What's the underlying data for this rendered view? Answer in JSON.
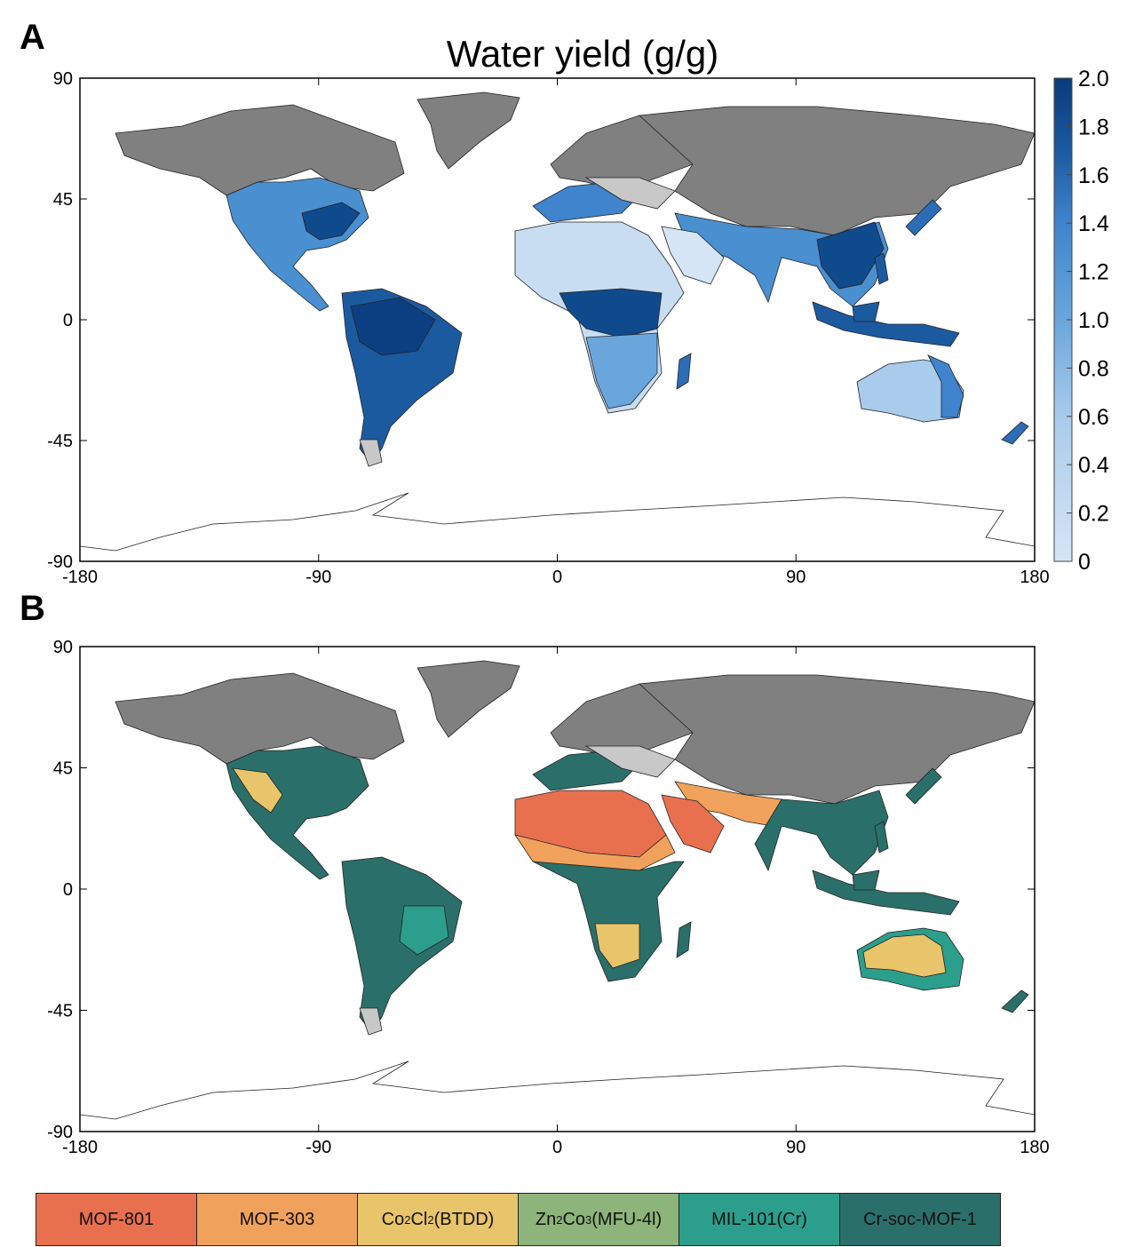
{
  "panel_a": {
    "letter": "A",
    "title": "Water yield (g/g)",
    "y_ticks": [
      "90",
      "45",
      "0",
      "-45",
      "-90"
    ],
    "x_ticks": [
      "-180",
      "-90",
      "0",
      "90",
      "180"
    ],
    "colorbar": {
      "ticks": [
        "2.0",
        "1.8",
        "1.6",
        "1.4",
        "1.2",
        "1.0",
        "0.8",
        "0.6",
        "0.4",
        "0.2",
        "0"
      ],
      "range": [
        0,
        2.0
      ],
      "color_low": "#d6e5f5",
      "color_high": "#0a3a7a"
    }
  },
  "panel_b": {
    "letter": "B",
    "y_ticks": [
      "90",
      "45",
      "0",
      "-45",
      "-90"
    ],
    "x_ticks": [
      "-180",
      "-90",
      "0",
      "90",
      "180"
    ]
  },
  "legend": [
    {
      "name": "MOF-801",
      "color": "#e8704f"
    },
    {
      "name": "MOF-303",
      "color": "#f0a25c"
    },
    {
      "name": "Co2Cl2(BTDD)",
      "color": "#e8c46a",
      "base": "Co",
      "sub1": "2",
      "mid": "Cl",
      "sub2": "2",
      "tail": "(BTDD)"
    },
    {
      "name": "Zn2Co3(MFU-4l)",
      "color": "#8db47a",
      "base": "Zn",
      "sub1": "2",
      "mid": "Co",
      "sub2": "3",
      "tail": "(MFU-4l)"
    },
    {
      "name": "MIL-101(Cr)",
      "color": "#2c9e8c"
    },
    {
      "name": "Cr-soc-MOF-1",
      "color": "#2b6f6a"
    }
  ],
  "colors": {
    "unsuitable_land": "#808080",
    "no_data_land": "#c8c8c8"
  }
}
